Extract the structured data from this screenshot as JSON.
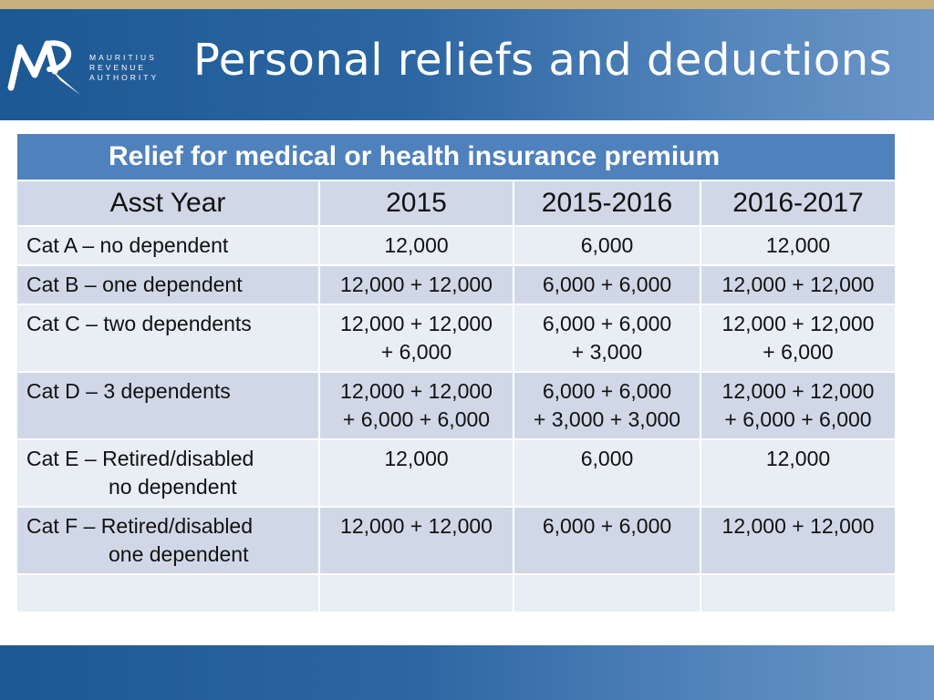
{
  "header": {
    "title": "Personal reliefs and deductions",
    "logo": {
      "mark": "MRA",
      "line1": "MAURITIUS",
      "line2": "REVENUE",
      "line3": "AUTHORITY"
    },
    "colors": {
      "band": "#2d67a3",
      "accent_line": "#c7b27d"
    }
  },
  "table": {
    "caption": "Relief for medical or health insurance premium",
    "columns": [
      "Asst Year",
      "2015",
      "2015-2016",
      "2016-2017"
    ],
    "rows": [
      {
        "label": [
          "Cat A – no dependent"
        ],
        "c2015": [
          "12,000"
        ],
        "c2016": [
          "6,000"
        ],
        "c2017": [
          "12,000"
        ]
      },
      {
        "label": [
          "Cat B – one dependent"
        ],
        "c2015": [
          "12,000 + 12,000"
        ],
        "c2016": [
          "6,000 + 6,000"
        ],
        "c2017": [
          "12,000 + 12,000"
        ]
      },
      {
        "label": [
          "Cat C – two dependents"
        ],
        "c2015": [
          "12,000 + 12,000",
          "+ 6,000"
        ],
        "c2016": [
          "6,000 + 6,000",
          "+ 3,000"
        ],
        "c2017": [
          "12,000 + 12,000",
          "+ 6,000"
        ]
      },
      {
        "label": [
          "Cat D – 3 dependents"
        ],
        "c2015": [
          "12,000 + 12,000",
          "+ 6,000 + 6,000"
        ],
        "c2016": [
          "6,000 + 6,000",
          "+ 3,000 + 3,000"
        ],
        "c2017": [
          "12,000 + 12,000",
          "+ 6,000 + 6,000"
        ]
      },
      {
        "label": [
          "Cat E – Retired/disabled",
          "no dependent"
        ],
        "c2015": [
          "12,000"
        ],
        "c2016": [
          "6,000"
        ],
        "c2017": [
          "12,000"
        ]
      },
      {
        "label": [
          "Cat F – Retired/disabled",
          "one dependent"
        ],
        "c2015": [
          "12,000 + 12,000"
        ],
        "c2016": [
          "6,000 + 6,000"
        ],
        "c2017": [
          "12,000 + 12,000"
        ]
      }
    ]
  }
}
